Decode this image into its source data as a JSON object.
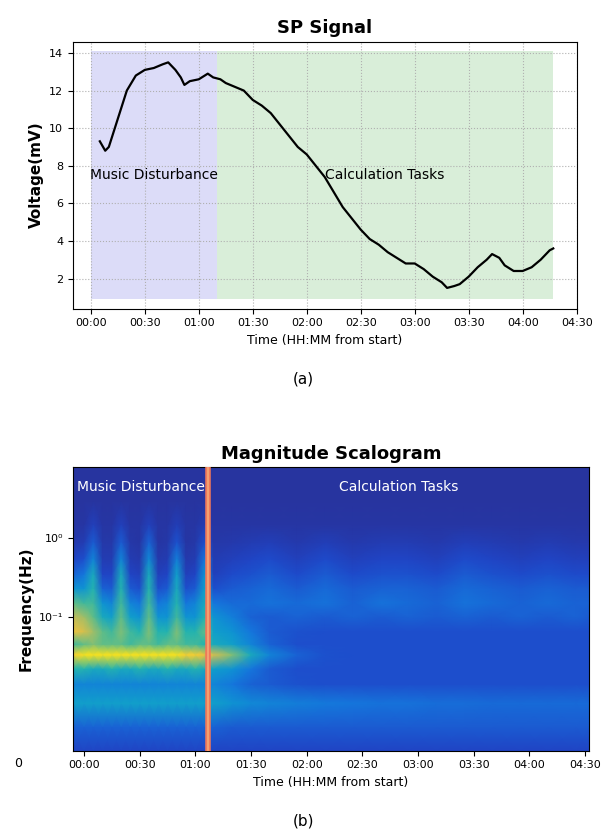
{
  "chart_data": [
    {
      "type": "line",
      "title": "SP Signal",
      "caption": "(a)",
      "x_label": "Time (HH:MM from start)",
      "y_label": "Voltage(mV)",
      "x": [
        5,
        8,
        10,
        15,
        20,
        25,
        30,
        35,
        40,
        43,
        47,
        50,
        52,
        55,
        60,
        65,
        68,
        72,
        75,
        80,
        85,
        90,
        95,
        100,
        105,
        110,
        115,
        120,
        125,
        130,
        135,
        140,
        145,
        150,
        155,
        160,
        165,
        170,
        175,
        180,
        185,
        190,
        195,
        198,
        202,
        205,
        210,
        215,
        220,
        223,
        227,
        230,
        235,
        240,
        245,
        250,
        255,
        257
      ],
      "values": [
        9.3,
        8.8,
        9.0,
        10.5,
        12.0,
        12.8,
        13.1,
        13.2,
        13.4,
        13.5,
        13.1,
        12.7,
        12.3,
        12.5,
        12.6,
        12.9,
        12.7,
        12.6,
        12.4,
        12.2,
        12.0,
        11.5,
        11.2,
        10.8,
        10.2,
        9.6,
        9.0,
        8.6,
        8.0,
        7.4,
        6.6,
        5.8,
        5.2,
        4.6,
        4.1,
        3.8,
        3.4,
        3.1,
        2.8,
        2.8,
        2.5,
        2.1,
        1.8,
        1.5,
        1.6,
        1.7,
        2.1,
        2.6,
        3.0,
        3.3,
        3.1,
        2.7,
        2.4,
        2.4,
        2.6,
        3.0,
        3.5,
        3.6
      ],
      "color": "#000000",
      "regions": [
        {
          "label": "Music Disturbance",
          "x": [
            0,
            70
          ],
          "y": [
            0.9,
            14.1
          ],
          "color": "#dcdcf8"
        },
        {
          "label": "Calculation Tasks",
          "x": [
            70,
            257
          ],
          "y": [
            0.9,
            14.1
          ],
          "color": "#d9eed9"
        }
      ],
      "xlim": [
        -10,
        270
      ],
      "xticks": [
        {
          "value": 0,
          "label": "00:00"
        },
        {
          "value": 30,
          "label": "00:30"
        },
        {
          "value": 60,
          "label": "01:00"
        },
        {
          "value": 90,
          "label": "01:30"
        },
        {
          "value": 120,
          "label": "02:00"
        },
        {
          "value": 150,
          "label": "02:30"
        },
        {
          "value": 180,
          "label": "03:00"
        },
        {
          "value": 210,
          "label": "03:30"
        },
        {
          "value": 240,
          "label": "04:00"
        },
        {
          "value": 270,
          "label": "04:30"
        }
      ],
      "ylim": [
        0.4,
        14.6
      ],
      "yticks": [
        2,
        4,
        6,
        8,
        10,
        12,
        14
      ],
      "grid": true
    },
    {
      "type": "heatmap",
      "title": "Magnitude Scalogram",
      "caption": "(b)",
      "x_label": "Time (HH:MM from start)",
      "y_label": "Frequency(Hz)",
      "log": "y",
      "annotations": [
        "0"
      ],
      "regions": [
        {
          "label": "Music Disturbance",
          "x": [
            -6,
            67
          ]
        },
        {
          "label": "Calculation Tasks",
          "x": [
            67,
            272
          ]
        }
      ],
      "time": [
        -6,
        0,
        5,
        10,
        15,
        20,
        25,
        30,
        35,
        40,
        45,
        50,
        55,
        60,
        65,
        70,
        80,
        90,
        100,
        115,
        130,
        145,
        160,
        175,
        190,
        205,
        220,
        235,
        250,
        265,
        272
      ],
      "frequency": [
        0.002,
        0.004,
        0.008,
        0.014,
        0.022,
        0.033,
        0.045,
        0.065,
        0.1,
        0.15,
        0.23,
        0.35,
        0.55,
        0.9,
        1.5,
        3,
        8
      ],
      "cells": [
        [
          0.12,
          0.12,
          0.12,
          0.12,
          0.12,
          0.12,
          0.12,
          0.12,
          0.12,
          0.12,
          0.12,
          0.12,
          0.12,
          0.12,
          0.12,
          0.12,
          0.12,
          0.12,
          0.12,
          0.12,
          0.12,
          0.12,
          0.12,
          0.12,
          0.12,
          0.12,
          0.12,
          0.12,
          0.12,
          0.12,
          0.12
        ],
        [
          0.2,
          0.2,
          0.2,
          0.2,
          0.2,
          0.2,
          0.2,
          0.2,
          0.2,
          0.2,
          0.2,
          0.2,
          0.2,
          0.2,
          0.2,
          0.2,
          0.18,
          0.18,
          0.18,
          0.18,
          0.18,
          0.18,
          0.18,
          0.18,
          0.18,
          0.18,
          0.18,
          0.18,
          0.18,
          0.18,
          0.18
        ],
        [
          0.4,
          0.4,
          0.4,
          0.4,
          0.4,
          0.4,
          0.4,
          0.4,
          0.4,
          0.4,
          0.4,
          0.4,
          0.4,
          0.4,
          0.4,
          0.4,
          0.35,
          0.32,
          0.3,
          0.28,
          0.26,
          0.25,
          0.24,
          0.24,
          0.23,
          0.23,
          0.22,
          0.22,
          0.22,
          0.22,
          0.22
        ],
        [
          0.3,
          0.3,
          0.3,
          0.3,
          0.3,
          0.3,
          0.3,
          0.3,
          0.3,
          0.3,
          0.3,
          0.3,
          0.3,
          0.3,
          0.3,
          0.3,
          0.25,
          0.2,
          0.18,
          0.16,
          0.15,
          0.15,
          0.15,
          0.15,
          0.15,
          0.15,
          0.15,
          0.15,
          0.15,
          0.15,
          0.15
        ],
        [
          0.5,
          0.5,
          0.45,
          0.45,
          0.5,
          0.45,
          0.45,
          0.5,
          0.45,
          0.45,
          0.5,
          0.45,
          0.45,
          0.5,
          0.45,
          0.4,
          0.35,
          0.25,
          0.18,
          0.15,
          0.15,
          0.15,
          0.15,
          0.15,
          0.15,
          0.15,
          0.15,
          0.15,
          0.15,
          0.15,
          0.15
        ],
        [
          0.9,
          0.95,
          0.95,
          0.95,
          0.95,
          0.95,
          0.95,
          0.95,
          0.95,
          0.95,
          0.95,
          0.95,
          0.9,
          0.9,
          0.85,
          0.8,
          0.65,
          0.45,
          0.3,
          0.2,
          0.16,
          0.15,
          0.15,
          0.15,
          0.15,
          0.15,
          0.15,
          0.15,
          0.15,
          0.15,
          0.15
        ],
        [
          0.55,
          0.6,
          0.65,
          0.6,
          0.6,
          0.6,
          0.55,
          0.6,
          0.6,
          0.55,
          0.6,
          0.6,
          0.55,
          0.55,
          0.5,
          0.45,
          0.4,
          0.3,
          0.2,
          0.15,
          0.15,
          0.15,
          0.15,
          0.15,
          0.15,
          0.15,
          0.15,
          0.15,
          0.15,
          0.15,
          0.15
        ],
        [
          0.85,
          0.8,
          0.7,
          0.6,
          0.55,
          0.65,
          0.55,
          0.5,
          0.65,
          0.5,
          0.5,
          0.65,
          0.5,
          0.5,
          0.6,
          0.4,
          0.35,
          0.25,
          0.18,
          0.16,
          0.15,
          0.15,
          0.15,
          0.15,
          0.15,
          0.15,
          0.15,
          0.15,
          0.15,
          0.15,
          0.15
        ],
        [
          0.75,
          0.7,
          0.6,
          0.45,
          0.4,
          0.6,
          0.4,
          0.35,
          0.6,
          0.35,
          0.35,
          0.55,
          0.35,
          0.35,
          0.5,
          0.35,
          0.28,
          0.2,
          0.18,
          0.2,
          0.18,
          0.2,
          0.18,
          0.2,
          0.18,
          0.2,
          0.18,
          0.2,
          0.18,
          0.2,
          0.18
        ],
        [
          0.6,
          0.55,
          0.55,
          0.35,
          0.3,
          0.55,
          0.3,
          0.25,
          0.55,
          0.25,
          0.3,
          0.5,
          0.25,
          0.3,
          0.45,
          0.25,
          0.22,
          0.22,
          0.24,
          0.22,
          0.24,
          0.2,
          0.24,
          0.22,
          0.2,
          0.24,
          0.22,
          0.2,
          0.22,
          0.2,
          0.2
        ],
        [
          0.35,
          0.35,
          0.5,
          0.2,
          0.18,
          0.5,
          0.18,
          0.15,
          0.5,
          0.15,
          0.18,
          0.45,
          0.15,
          0.18,
          0.4,
          0.15,
          0.18,
          0.2,
          0.22,
          0.18,
          0.22,
          0.18,
          0.2,
          0.2,
          0.18,
          0.22,
          0.2,
          0.18,
          0.2,
          0.18,
          0.18
        ],
        [
          0.2,
          0.25,
          0.45,
          0.12,
          0.12,
          0.45,
          0.12,
          0.1,
          0.45,
          0.1,
          0.12,
          0.4,
          0.1,
          0.12,
          0.35,
          0.1,
          0.14,
          0.16,
          0.18,
          0.14,
          0.18,
          0.14,
          0.16,
          0.16,
          0.14,
          0.18,
          0.16,
          0.14,
          0.16,
          0.14,
          0.14
        ],
        [
          0.12,
          0.15,
          0.3,
          0.08,
          0.08,
          0.3,
          0.08,
          0.07,
          0.32,
          0.07,
          0.08,
          0.28,
          0.07,
          0.08,
          0.25,
          0.08,
          0.1,
          0.12,
          0.14,
          0.1,
          0.14,
          0.1,
          0.12,
          0.12,
          0.1,
          0.14,
          0.12,
          0.1,
          0.12,
          0.1,
          0.1
        ],
        [
          0.07,
          0.08,
          0.18,
          0.06,
          0.06,
          0.18,
          0.06,
          0.05,
          0.2,
          0.05,
          0.06,
          0.16,
          0.05,
          0.06,
          0.15,
          0.06,
          0.07,
          0.08,
          0.09,
          0.07,
          0.09,
          0.07,
          0.08,
          0.08,
          0.07,
          0.09,
          0.08,
          0.07,
          0.08,
          0.07,
          0.07
        ],
        [
          0.05,
          0.05,
          0.1,
          0.05,
          0.05,
          0.1,
          0.05,
          0.05,
          0.1,
          0.05,
          0.05,
          0.09,
          0.05,
          0.05,
          0.08,
          0.05,
          0.05,
          0.05,
          0.05,
          0.05,
          0.05,
          0.05,
          0.05,
          0.05,
          0.05,
          0.05,
          0.05,
          0.05,
          0.05,
          0.05,
          0.05
        ],
        [
          0.04,
          0.04,
          0.04,
          0.04,
          0.04,
          0.04,
          0.04,
          0.04,
          0.04,
          0.04,
          0.04,
          0.04,
          0.04,
          0.04,
          0.04,
          0.04,
          0.04,
          0.04,
          0.04,
          0.04,
          0.04,
          0.04,
          0.04,
          0.04,
          0.04,
          0.04,
          0.04,
          0.04,
          0.04,
          0.04,
          0.04
        ],
        [
          0.04,
          0.04,
          0.04,
          0.04,
          0.04,
          0.04,
          0.04,
          0.04,
          0.04,
          0.04,
          0.04,
          0.04,
          0.04,
          0.04,
          0.04,
          0.04,
          0.04,
          0.04,
          0.04,
          0.04,
          0.04,
          0.04,
          0.04,
          0.04,
          0.04,
          0.04,
          0.04,
          0.04,
          0.04,
          0.04,
          0.04
        ]
      ],
      "value_range": [
        0,
        1
      ],
      "xlim": [
        -6,
        272
      ],
      "xticks": [
        {
          "value": 0,
          "label": "00:00"
        },
        {
          "value": 30,
          "label": "00:30"
        },
        {
          "value": 60,
          "label": "01:00"
        },
        {
          "value": 90,
          "label": "01:30"
        },
        {
          "value": 120,
          "label": "02:00"
        },
        {
          "value": 150,
          "label": "02:30"
        },
        {
          "value": 180,
          "label": "03:00"
        },
        {
          "value": 210,
          "label": "03:30"
        },
        {
          "value": 240,
          "label": "04:00"
        },
        {
          "value": 270,
          "label": "04:30"
        }
      ],
      "ylim": [
        0.002,
        8
      ],
      "yticks": [
        {
          "value": 0.1,
          "label": "10⁻¹"
        },
        {
          "value": 1,
          "label": "10⁰"
        }
      ],
      "grid": false
    }
  ]
}
